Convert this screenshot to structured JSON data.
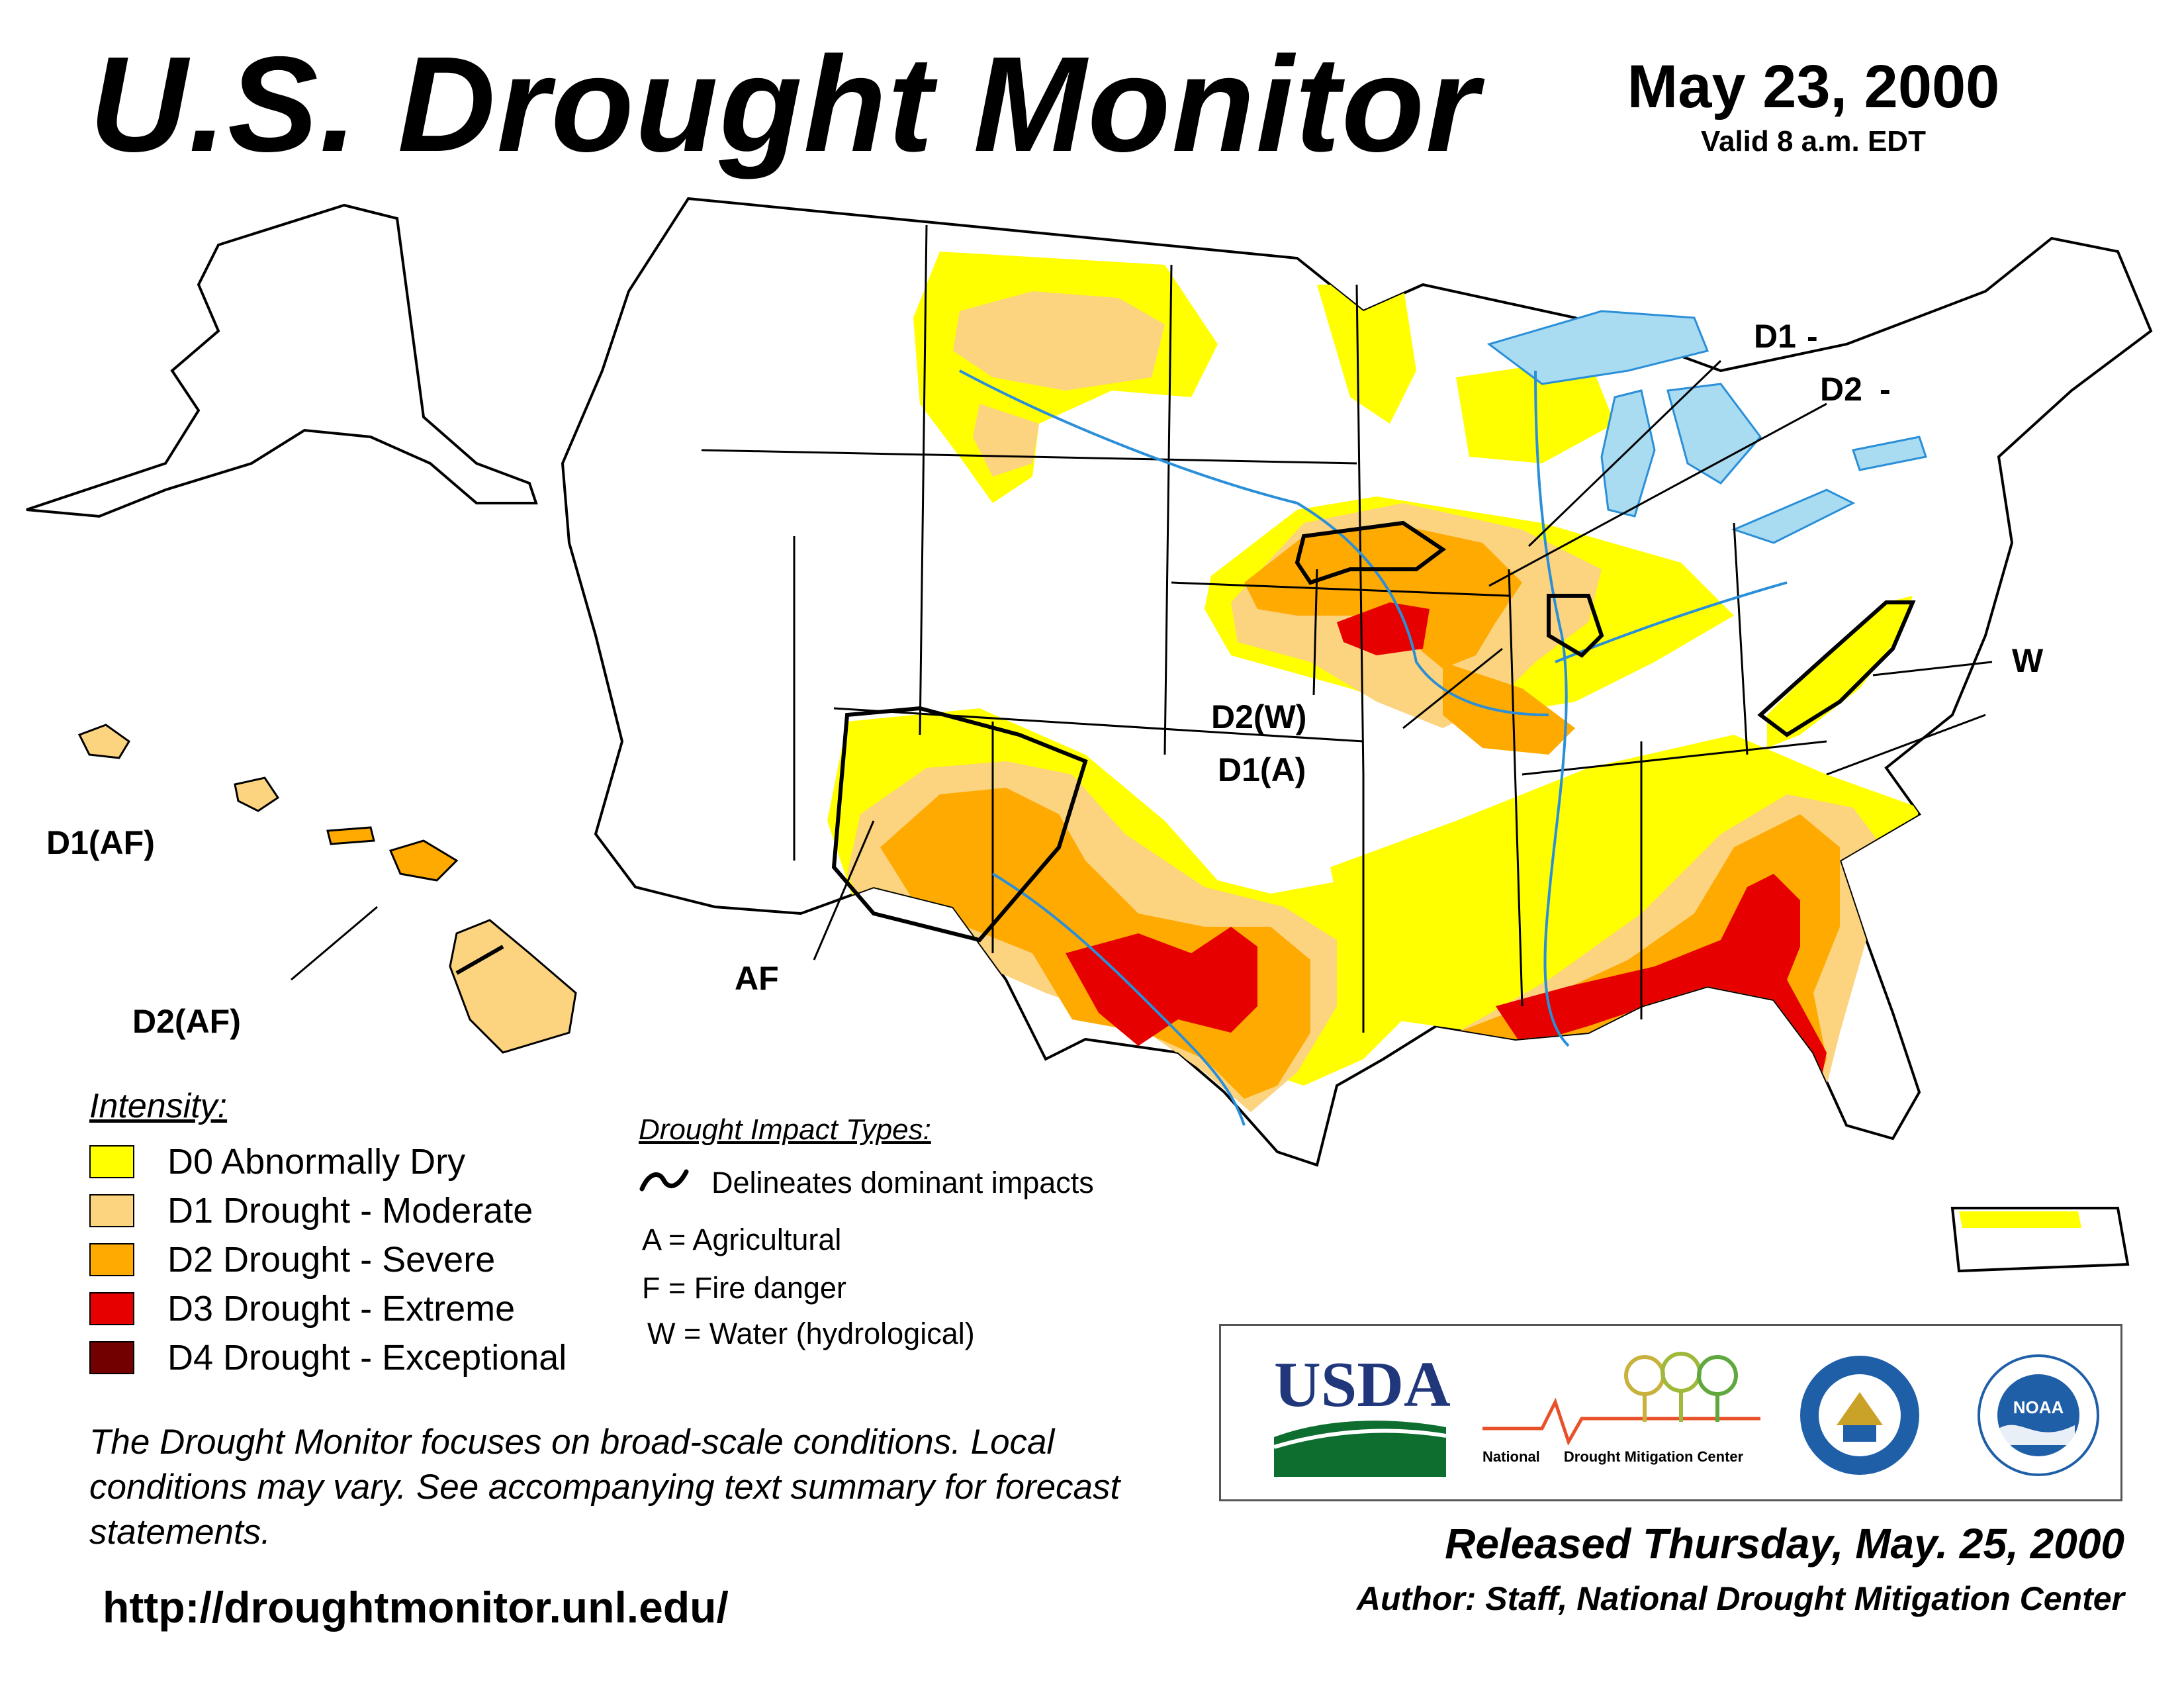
{
  "header": {
    "title": "U.S. Drought Monitor",
    "date": "May 23, 2000",
    "valid": "Valid 8 a.m. EDT"
  },
  "map": {
    "annotations": {
      "d1": "D1",
      "d2": "D2",
      "w": "W",
      "d2w": "D2(W)",
      "d1a": "D1(A)",
      "af": "AF",
      "d1af": "D1(AF)",
      "d2af": "D2(AF)"
    },
    "colors": {
      "land": "#ffffff",
      "water": "#a9dbf1",
      "rivers": "#2a8fd8",
      "borders": "#000000",
      "counties": "#a8a8a8"
    }
  },
  "legend": {
    "title": "Intensity:",
    "items": [
      {
        "label": "D0 Abnormally Dry",
        "color": "#ffff00"
      },
      {
        "label": "D1 Drought - Moderate",
        "color": "#fcd37f"
      },
      {
        "label": "D2 Drought - Severe",
        "color": "#ffaa00"
      },
      {
        "label": "D3 Drought - Extreme",
        "color": "#e60000"
      },
      {
        "label": "D4 Drought - Exceptional",
        "color": "#730000"
      }
    ]
  },
  "impacts": {
    "title": "Drought Impact Types:",
    "delineates": "Delineates dominant impacts",
    "a": "A = Agricultural",
    "f": "F = Fire danger",
    "w": "W = Water (hydrological)"
  },
  "footer": {
    "note": "The Drought Monitor focuses on broad-scale conditions. Local conditions may vary. See accompanying text summary for forecast statements.",
    "url": "http://droughtmonitor.unl.edu/",
    "released": "Released Thursday, May. 25, 2000",
    "author": "Author: Staff, National Drought Mitigation Center"
  },
  "logos": {
    "usda": "USDA",
    "ndmc_1": "National",
    "ndmc_2": "Drought Mitigation Center",
    "noaa": "NOAA"
  }
}
